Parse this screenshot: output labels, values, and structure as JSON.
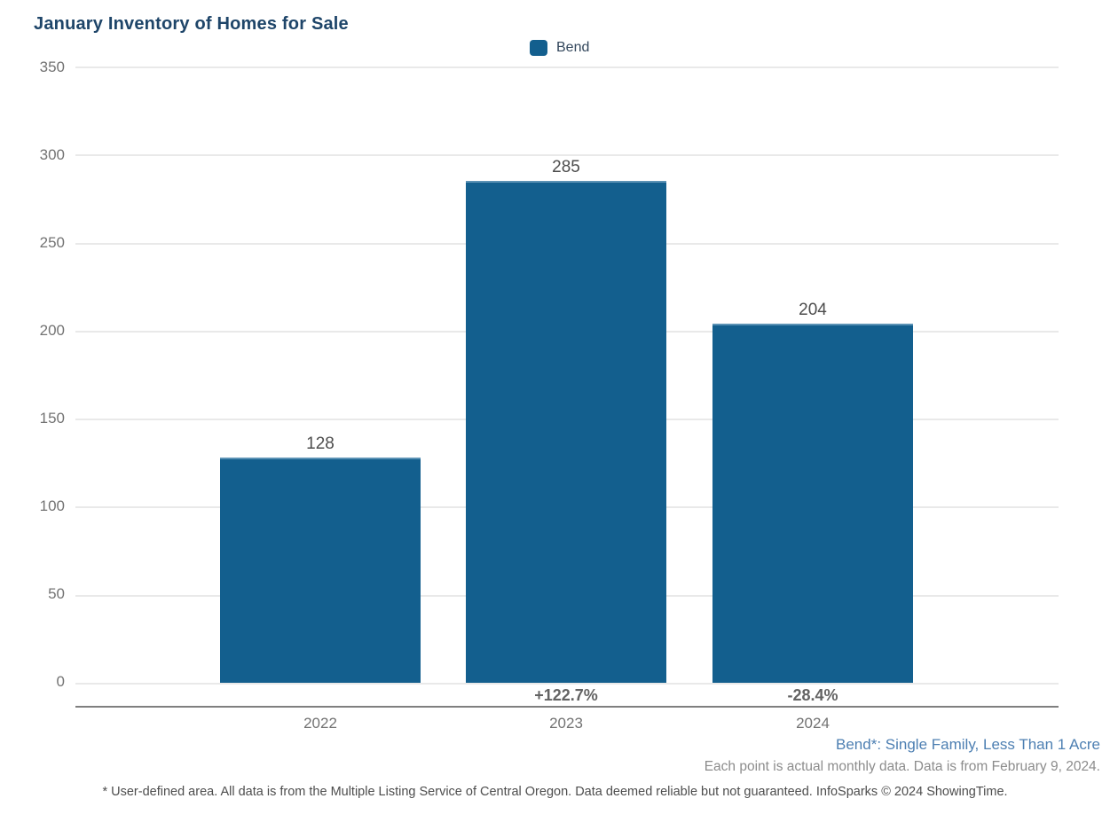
{
  "title": "January Inventory of Homes for Sale",
  "legend": {
    "label": "Bend"
  },
  "colors": {
    "bar": "#135f8e",
    "bar_top_edge": "#5b92b5",
    "title": "#1e4569",
    "series_note": "#4d7fb2"
  },
  "chart_data": {
    "type": "bar",
    "title": "January Inventory of Homes for Sale",
    "categories": [
      "2022",
      "2023",
      "2024"
    ],
    "series": [
      {
        "name": "Bend",
        "values": [
          128,
          285,
          204
        ]
      }
    ],
    "data_labels": [
      "128",
      "285",
      "204"
    ],
    "pct_change_labels": [
      "",
      "+122.7%",
      "-28.4%"
    ],
    "xlabel": "",
    "ylabel": "",
    "ylim": [
      0,
      350
    ],
    "yticks": [
      0,
      50,
      100,
      150,
      200,
      250,
      300,
      350
    ],
    "grid": true,
    "legend_position": "top-center",
    "legend_entries": [
      "Bend"
    ],
    "bar_color": "#135f8e"
  },
  "y_axis": {
    "labels_top_to_bottom": [
      "350",
      "300",
      "250",
      "200",
      "150",
      "100",
      "50",
      "0"
    ]
  },
  "bars": [
    {
      "year": "2022",
      "value": "128",
      "pct": ""
    },
    {
      "year": "2023",
      "value": "285",
      "pct": "+122.7%"
    },
    {
      "year": "2024",
      "value": "204",
      "pct": "-28.4%"
    }
  ],
  "annotations": {
    "series_note": "Bend*: Single Family, Less Than 1 Acre",
    "data_note": "Each point is actual monthly data. Data is from February 9, 2024.",
    "footnote": "* User-defined area. All data is from the Multiple Listing Service of Central Oregon. Data deemed reliable but not guaranteed. InfoSparks © 2024 ShowingTime."
  }
}
